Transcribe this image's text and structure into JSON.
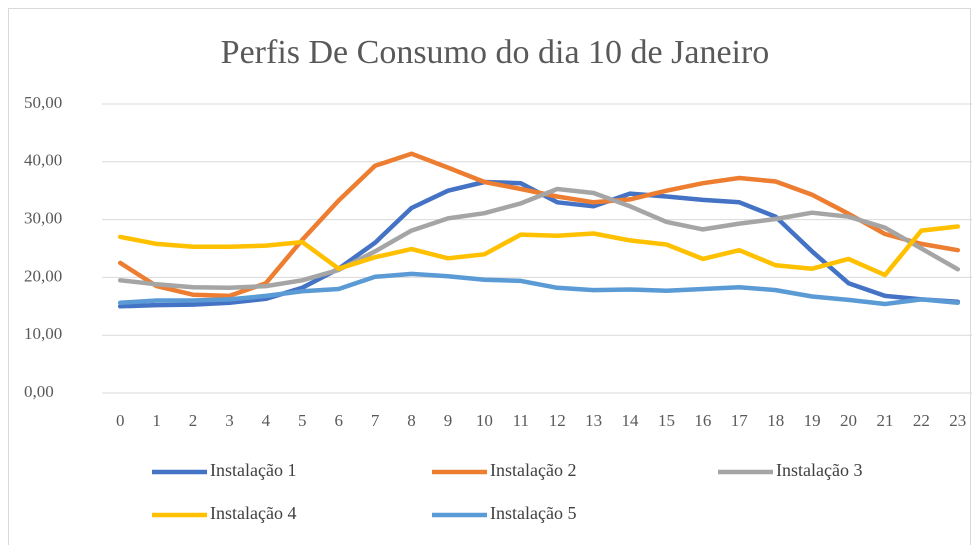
{
  "chart_data": {
    "type": "line",
    "title": "Perfis De Consumo do dia 10 de Janeiro",
    "categories": [
      "0",
      "1",
      "2",
      "3",
      "4",
      "5",
      "6",
      "7",
      "8",
      "9",
      "10",
      "11",
      "12",
      "13",
      "14",
      "15",
      "16",
      "17",
      "18",
      "19",
      "20",
      "21",
      "22",
      "23"
    ],
    "ylim": [
      0,
      50
    ],
    "yticks": [
      {
        "value": 0,
        "label": "0,00"
      },
      {
        "value": 10,
        "label": "10,00"
      },
      {
        "value": 20,
        "label": "20,00"
      },
      {
        "value": 30,
        "label": "30,00"
      },
      {
        "value": 40,
        "label": "40,00"
      },
      {
        "value": 50,
        "label": "50,00"
      }
    ],
    "grid": true,
    "legend": "bottom",
    "series": [
      {
        "name": "Instalação 1",
        "color": "#4472c4",
        "values": [
          15.0,
          15.2,
          15.3,
          15.6,
          16.3,
          18.2,
          21.5,
          26,
          32,
          35,
          36.5,
          36.3,
          33,
          32.3,
          34.5,
          34,
          33.4,
          33,
          30.5,
          24.5,
          19,
          16.8,
          16.2,
          15.8
        ]
      },
      {
        "name": "Instalação 2",
        "color": "#ed7d31",
        "values": [
          22.5,
          18.5,
          17,
          16.8,
          19,
          26.5,
          33.3,
          39.3,
          41.4,
          39,
          36.5,
          35.3,
          34,
          33,
          33.5,
          35,
          36.3,
          37.2,
          36.6,
          34.3,
          31,
          27.5,
          25.8,
          24.7
        ]
      },
      {
        "name": "Instalação 3",
        "color": "#a5a5a5",
        "values": [
          19.5,
          18.8,
          18.3,
          18.2,
          18.5,
          19.5,
          21.3,
          24.5,
          28.1,
          30.2,
          31.1,
          32.8,
          35.3,
          34.6,
          32.3,
          29.6,
          28.3,
          29.3,
          30.1,
          31.2,
          30.5,
          28.6,
          25,
          21.4
        ]
      },
      {
        "name": "Instalação 4",
        "color": "#ffc000",
        "values": [
          27,
          25.8,
          25.3,
          25.3,
          25.5,
          26.1,
          21.5,
          23.5,
          24.9,
          23.3,
          24,
          27.4,
          27.2,
          27.6,
          26.4,
          25.7,
          23.2,
          24.7,
          22.1,
          21.5,
          23.2,
          20.4,
          28.1,
          28.8
        ]
      },
      {
        "name": "Instalação 5",
        "color": "#5b9bd5",
        "values": [
          15.6,
          16,
          16,
          16.2,
          16.8,
          17.6,
          18,
          20.1,
          20.6,
          20.2,
          19.6,
          19.4,
          18.2,
          17.8,
          17.9,
          17.7,
          18,
          18.3,
          17.8,
          16.7,
          16.1,
          15.4,
          16.2,
          15.6
        ]
      }
    ]
  }
}
